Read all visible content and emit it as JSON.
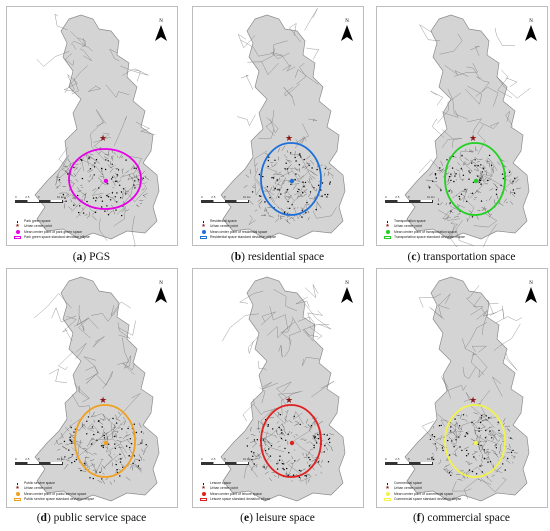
{
  "north_label": "N",
  "panels": [
    {
      "caption_letter": "(a)",
      "caption_text": " PGS",
      "ellipse_color": "#e600e6",
      "legend": [
        "Park green space",
        "Urban center point",
        "Mean center point of park green space",
        "Park green space standard deviation ellipse"
      ]
    },
    {
      "caption_letter": "(b)",
      "caption_text": " residential space",
      "ellipse_color": "#1f6fd9",
      "legend": [
        "Residential space",
        "Urban center point",
        "Mean center point of residential space",
        "Residential space standard deviation ellipse"
      ]
    },
    {
      "caption_letter": "(c)",
      "caption_text": " transportation space",
      "ellipse_color": "#22d122",
      "legend": [
        "Transportation space",
        "Urban center point",
        "Mean center point of transportation space",
        "Transportation space standard deviation ellipse"
      ]
    },
    {
      "caption_letter": "(d)",
      "caption_text": " public service space",
      "ellipse_color": "#f0a020",
      "legend": [
        "Public service space",
        "Urban center point",
        "Mean center point of public service space",
        "Public service space standard deviation ellipse"
      ]
    },
    {
      "caption_letter": "(e)",
      "caption_text": " leisure space",
      "ellipse_color": "#e02020",
      "legend": [
        "Leisure space",
        "Urban center point",
        "Mean center point of leisure space",
        "Leisure space standard deviation ellipse"
      ]
    },
    {
      "caption_letter": "(f)",
      "caption_text": " commercial space",
      "ellipse_color": "#f2f24a",
      "legend": [
        "Commercial space",
        "Urban center point",
        "Mean center point of commercial space",
        "Commercial space standard deviation ellipse"
      ]
    }
  ],
  "scale_ticks": [
    "0",
    "2.5",
    "5",
    "",
    "10 km"
  ],
  "colors": {
    "region_fill": "#d4d4d4",
    "region_stroke": "#8c8c8c",
    "urban_center_star": "#8b1a1a"
  }
}
